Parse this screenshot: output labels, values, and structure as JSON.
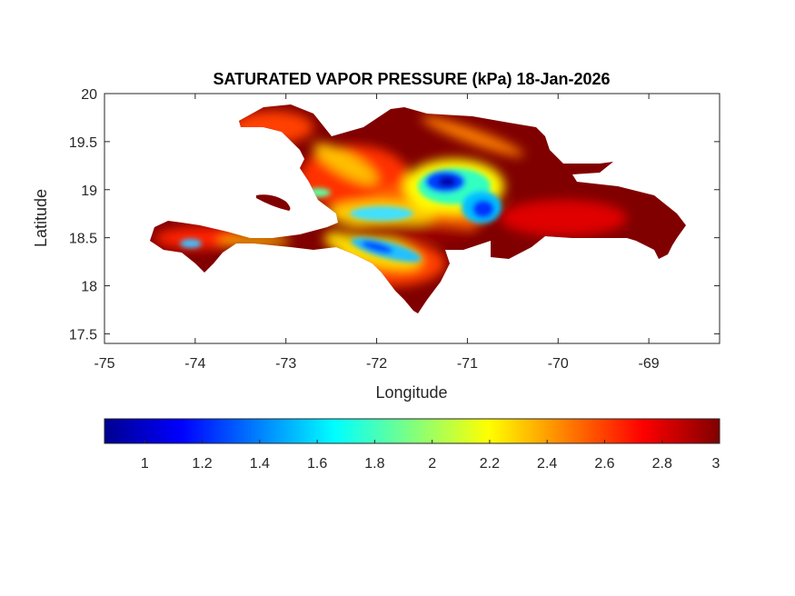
{
  "chart_data": {
    "type": "heatmap",
    "title": "SATURATED VAPOR PRESSURE (kPa) 18-Jan-2026",
    "xlabel": "Longitude",
    "ylabel": "Latitude",
    "xlim": [
      -75,
      -68.22
    ],
    "ylim": [
      17.4,
      20
    ],
    "xticks": [
      -75,
      -74,
      -73,
      -72,
      -71,
      -70,
      -69
    ],
    "xtick_labels": [
      "-75",
      "-74",
      "-73",
      "-72",
      "-71",
      "-70",
      "-69"
    ],
    "yticks": [
      17.5,
      18,
      18.5,
      19,
      19.5,
      20
    ],
    "ytick_labels": [
      "17.5",
      "18",
      "18.5",
      "19",
      "19.5",
      "20"
    ],
    "colormap": "jet",
    "clim": [
      0.86,
      3.0
    ],
    "colorbar": {
      "location": "southoutside",
      "ticks": [
        1,
        1.2,
        1.4,
        1.6,
        1.8,
        2,
        2.2,
        2.4,
        2.6,
        2.8,
        3
      ],
      "tick_labels": [
        "1",
        "1.2",
        "1.4",
        "1.6",
        "1.8",
        "2",
        "2.2",
        "2.4",
        "2.6",
        "2.8",
        "3"
      ]
    },
    "grid": false,
    "colors": {
      "dark_red": "#800000",
      "red": "#ff0000",
      "orange": "#ff8000",
      "yellow": "#ffff00",
      "cyan": "#00ffff",
      "blue": "#0000ff",
      "dark_blue": "#00008f"
    }
  }
}
